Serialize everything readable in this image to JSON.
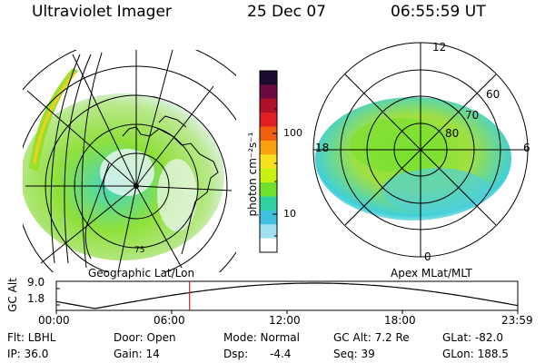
{
  "header": {
    "title": "Ultraviolet Imager",
    "date": "25 Dec 07",
    "time": "06:55:59 UT"
  },
  "left_map": {
    "caption": "Geographic Lat/Lon",
    "lat_label": "75"
  },
  "colorbar": {
    "unit_label": "photon cm⁻²s⁻¹",
    "ticks": [
      "100",
      "10"
    ],
    "colors": [
      "#1a0a2e",
      "#6a0a40",
      "#b0102a",
      "#e02020",
      "#f06010",
      "#f8a010",
      "#f8e020",
      "#c8f010",
      "#70e030",
      "#30d0a0",
      "#40c0e0",
      "#a0e0f0",
      "#ffffff"
    ]
  },
  "right_map": {
    "caption": "Apex MLat/MLT",
    "mlt_labels": [
      "12",
      "18",
      "6",
      "0"
    ],
    "mlat_labels": [
      "60",
      "70",
      "80"
    ]
  },
  "orbit_plot": {
    "ylabel": "GC Alt",
    "yticks": [
      "9.0",
      "1.8"
    ],
    "xticks": [
      "00:00",
      "06:00",
      "12:00",
      "18:00",
      "23:59"
    ],
    "marker_time_hours": 6.93
  },
  "info": {
    "flt": "Flt: LBHL",
    "ip": "IP: 36.0",
    "door": "Door: Open",
    "gain": "Gain: 14",
    "mode": "Mode: Normal",
    "dsp_label": "Dsp:",
    "dsp_value": "-4.4",
    "gcalt": "GC Alt: 7.2 Re",
    "seq": "Seq: 39",
    "glat": "GLat: -82.0",
    "glon": "GLon: 188.5"
  },
  "colors": {
    "aurora_primary": "#8fe03a",
    "aurora_secondary": "#3fd6c8",
    "marker": "#d02020"
  }
}
